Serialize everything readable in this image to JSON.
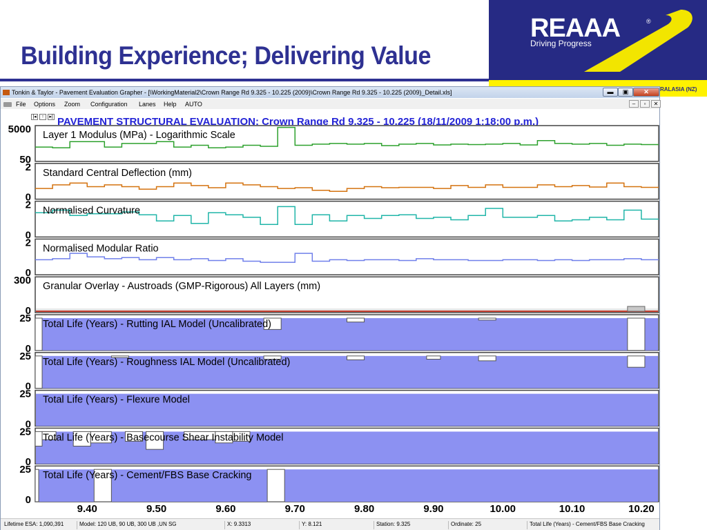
{
  "slide": {
    "title": "Building Experience; Delivering Value",
    "logo_text": "REAAA",
    "logo_reg": "®",
    "logo_sub": "Driving Progress",
    "strip_text": "RALASIA (NZ)"
  },
  "window": {
    "title": "Tonkin & Taylor - Pavement Evaluation Grapher - [\\WorkingMaterial2\\Crown Range Rd 9.325 - 10.225 (2009)\\Crown Range Rd 9.325 - 10.225 (2009)_Detail.xls]",
    "min_label": "▬",
    "max_label": "▣",
    "close_label": "✕"
  },
  "menu": {
    "items": [
      "File",
      "Options",
      "Zoom",
      "Configuration",
      "Lanes",
      "Help",
      "AUTO"
    ],
    "mdi_min": "–",
    "mdi_restore": "▫",
    "mdi_close": "✕"
  },
  "toolbar": {
    "first_label": "|◂",
    "up_label": "↑",
    "next_label": "▸|",
    "heading": "PAVEMENT STRUCTURAL EVALUATION: Crown Range Rd 9.325 - 10.225 (18/11/2009 1:18:00 p.m.)"
  },
  "colors": {
    "heading": "#2323d6",
    "modulus": "#2ca02c",
    "deflection": "#d4720e",
    "curvature": "#1fb5a8",
    "modular_ratio": "#6f7fea",
    "life_fill": "#8c91f2",
    "overlay_line": "#c0392b"
  },
  "chart_data": {
    "type": "line",
    "x_ticks": [
      "9.40",
      "9.50",
      "9.60",
      "9.70",
      "9.80",
      "9.90",
      "10.00",
      "10.10",
      "10.20"
    ],
    "xlim": [
      9.325,
      10.225
    ],
    "panels": [
      {
        "label": "Layer 1 Modulus (MPa) - Logarithmic Scale",
        "ymax": "5000",
        "ymin": "50",
        "kind": "line",
        "color": "#2ca02c",
        "levels": [
          0.4,
          0.38,
          0.55,
          0.55,
          0.4,
          0.5,
          0.5,
          0.55,
          0.4,
          0.45,
          0.38,
          0.4,
          0.45,
          0.42,
          0.95,
          0.45,
          0.48,
          0.5,
          0.48,
          0.5,
          0.44,
          0.48,
          0.5,
          0.46,
          0.48,
          0.47,
          0.48,
          0.5,
          0.46,
          0.58,
          0.5,
          0.48,
          0.5,
          0.45,
          0.48,
          0.47
        ]
      },
      {
        "label": "Standard Central Deflection (mm)",
        "ymax": "2",
        "ymin": "0",
        "kind": "line",
        "color": "#d4720e",
        "levels": [
          0.3,
          0.4,
          0.45,
          0.35,
          0.4,
          0.35,
          0.28,
          0.35,
          0.45,
          0.38,
          0.32,
          0.45,
          0.4,
          0.35,
          0.3,
          0.32,
          0.25,
          0.22,
          0.3,
          0.35,
          0.32,
          0.33,
          0.33,
          0.3,
          0.38,
          0.33,
          0.4,
          0.33,
          0.33,
          0.4,
          0.35,
          0.38,
          0.34,
          0.45,
          0.35,
          0.33
        ]
      },
      {
        "label": "Normalised Curvature",
        "ymax": "2",
        "ymin": "0",
        "kind": "line",
        "color": "#1fb5a8",
        "levels": [
          0.68,
          0.75,
          0.6,
          0.65,
          0.65,
          0.7,
          0.62,
          0.45,
          0.6,
          0.38,
          0.68,
          0.62,
          0.55,
          0.35,
          0.85,
          0.35,
          0.62,
          0.45,
          0.6,
          0.52,
          0.6,
          0.62,
          0.52,
          0.55,
          0.48,
          0.6,
          0.8,
          0.55,
          0.55,
          0.6,
          0.45,
          0.48,
          0.55,
          0.48,
          0.75,
          0.5
        ]
      },
      {
        "label": "Normalised Modular Ratio",
        "ymax": "2",
        "ymin": "0",
        "kind": "line",
        "color": "#6f7fea",
        "levels": [
          0.42,
          0.45,
          0.6,
          0.5,
          0.45,
          0.48,
          0.42,
          0.48,
          0.42,
          0.45,
          0.4,
          0.45,
          0.38,
          0.35,
          0.35,
          0.6,
          0.38,
          0.42,
          0.4,
          0.42,
          0.42,
          0.4,
          0.45,
          0.42,
          0.42,
          0.4,
          0.4,
          0.42,
          0.42,
          0.4,
          0.42,
          0.4,
          0.42,
          0.42,
          0.45,
          0.42
        ]
      },
      {
        "label": "Granular Overlay - Austroads (GMP-Rigorous) All Layers (mm)",
        "ymax": "300",
        "ymin": "0",
        "kind": "overlay",
        "color": "#c0392b"
      },
      {
        "label": "Total Life (Years) - Rutting IAL Model (Uncalibrated)",
        "ymax": "25",
        "ymin": "0",
        "kind": "life",
        "notches": [
          [
            9.325,
            9.335,
            1.0
          ],
          [
            9.655,
            9.68,
            0.35
          ],
          [
            9.775,
            9.8,
            0.12
          ],
          [
            9.965,
            9.99,
            0.06
          ],
          [
            10.18,
            10.205,
            1.0
          ]
        ]
      },
      {
        "label": "Total Life (Years) - Roughness IAL Model (Uncalibrated)",
        "ymax": "25",
        "ymin": "0",
        "kind": "life",
        "notches": [
          [
            9.325,
            9.335,
            1.0
          ],
          [
            9.435,
            9.46,
            0.05
          ],
          [
            9.655,
            9.68,
            0.1
          ],
          [
            9.775,
            9.8,
            0.12
          ],
          [
            9.89,
            9.91,
            0.1
          ],
          [
            9.965,
            9.99,
            0.15
          ],
          [
            10.18,
            10.205,
            0.35
          ]
        ]
      },
      {
        "label": "Total Life (Years) - Flexure Model",
        "ymax": "25",
        "ymin": "0",
        "kind": "life",
        "notches": []
      },
      {
        "label": "Total Life (Years) - Basecourse Shear Instability Model",
        "ymax": "25",
        "ymin": "0",
        "kind": "life",
        "notches": [
          [
            9.325,
            9.335,
            0.45
          ],
          [
            9.335,
            9.355,
            0.25
          ],
          [
            9.38,
            9.405,
            0.45
          ],
          [
            9.405,
            9.435,
            0.35
          ],
          [
            9.455,
            9.48,
            0.3
          ],
          [
            9.485,
            9.51,
            0.55
          ],
          [
            9.54,
            9.585,
            0.25
          ],
          [
            9.585,
            9.61,
            0.35
          ],
          [
            9.61,
            9.635,
            0.3
          ]
        ]
      },
      {
        "label": "Total Life (Years) - Cement/FBS Base Cracking",
        "ymax": "25",
        "ymin": "0",
        "kind": "life",
        "notches": [
          [
            9.325,
            9.33,
            1.0
          ],
          [
            9.41,
            9.435,
            1.0
          ],
          [
            9.66,
            9.685,
            1.0
          ]
        ]
      }
    ]
  },
  "status": {
    "items": [
      "Lifetime ESA: 1,090,391",
      "Model: 120 UB, 90 UB, 300 UB ,UN SG",
      "X: 9.3313",
      "Y: 8.121",
      "Station: 9.325",
      "Ordinate: 25",
      "Total Life (Years) - Cement/FBS Base Cracking"
    ]
  }
}
